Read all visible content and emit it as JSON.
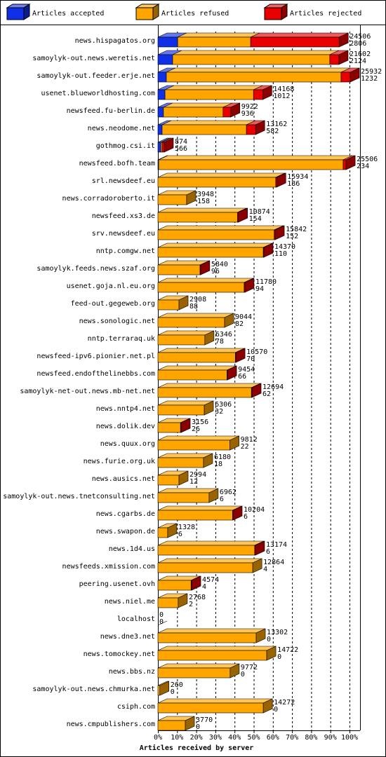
{
  "chart_data": {
    "type": "bar",
    "orientation": "horizontal",
    "stacked": true,
    "x_label": "Articles received by server",
    "xlim": [
      0,
      100
    ],
    "xticks": [
      {
        "value": 0,
        "label": "0%"
      },
      {
        "value": 10,
        "label": "10%"
      },
      {
        "value": 20,
        "label": "20%"
      },
      {
        "value": 30,
        "label": "30%"
      },
      {
        "value": 40,
        "label": "40%"
      },
      {
        "value": 50,
        "label": "50%"
      },
      {
        "value": 60,
        "label": "60%"
      },
      {
        "value": 70,
        "label": "70%"
      },
      {
        "value": 80,
        "label": "80%"
      },
      {
        "value": 90,
        "label": "90%"
      },
      {
        "value": 100,
        "label": "100%"
      }
    ],
    "grid": true,
    "categories": [
      "news.hispagatos.org",
      "samoylyk-out.news.weretis.net",
      "samoylyk-out.feeder.erje.net",
      "usenet.blueworldhosting.com",
      "newsfeed.fu-berlin.de",
      "news.neodome.net",
      "gothmog.csi.it",
      "newsfeed.bofh.team",
      "srl.newsdeef.eu",
      "news.corradoroberto.it",
      "newsfeed.xs3.de",
      "srv.newsdeef.eu",
      "nntp.comgw.net",
      "samoylyk.feeds.news.szaf.org",
      "usenet.goja.nl.eu.org",
      "feed-out.gegeweb.org",
      "news.sonologic.net",
      "nntp.terraraq.uk",
      "newsfeed-ipv6.pionier.net.pl",
      "newsfeed.endofthelinebbs.com",
      "samoylyk-net-out.news.mb-net.net",
      "news.nntp4.net",
      "news.dolik.dev",
      "news.quux.org",
      "news.furie.org.uk",
      "news.ausics.net",
      "samoylyk-out.news.tnetconsulting.net",
      "news.cgarbs.de",
      "news.swapon.de",
      "news.1d4.us",
      "newsfeeds.xmission.com",
      "peering.usenet.ovh",
      "news.niel.me",
      "localhost",
      "news.dne3.net",
      "news.tomockey.net",
      "news.bbs.nz",
      "samoylyk-out.news.chmurka.net",
      "csiph.com",
      "news.cmpublishers.com"
    ],
    "series": [
      {
        "name": "Articles accepted",
        "color": "#1030e8",
        "values": [
          10.3,
          7.7,
          4.4,
          3.7,
          2.9,
          2.2,
          1.5,
          0.4,
          0,
          0,
          0,
          0,
          0,
          0,
          0,
          0,
          0,
          0,
          0,
          0,
          0,
          0,
          0,
          0,
          0,
          0,
          0,
          0,
          0,
          0,
          0,
          0,
          0,
          0,
          0,
          0,
          0,
          0,
          0,
          0
        ]
      },
      {
        "name": "Articles refused",
        "color": "#ffa500",
        "values": [
          38.1,
          82,
          91.2,
          46.2,
          31.1,
          44,
          0.7,
          96.3,
          61.5,
          15,
          41.5,
          60.7,
          55,
          22,
          45,
          11,
          34.8,
          24.5,
          40.4,
          36.1,
          48.8,
          24.2,
          11.8,
          37.6,
          23.8,
          11,
          26.7,
          39,
          5.1,
          50.5,
          49.5,
          17.3,
          10.6,
          0,
          51.3,
          56.8,
          37.7,
          1,
          55,
          14.3
        ]
      },
      {
        "name": "Articles rejected",
        "color": "#e80000",
        "values": [
          46.2,
          4.8,
          4.8,
          4.8,
          4,
          4.8,
          1.1,
          1.5,
          0.5,
          0,
          0.5,
          0.5,
          0.3,
          0.3,
          0.4,
          0,
          0,
          0,
          0.3,
          0.2,
          0.3,
          0,
          0.3,
          0,
          0,
          0,
          0,
          0.2,
          0,
          0.4,
          0,
          0.3,
          0,
          0,
          0,
          0,
          0,
          0,
          0,
          0
        ]
      }
    ],
    "annotations": [
      [
        24506,
        2806
      ],
      [
        21602,
        2124
      ],
      [
        25932,
        1232
      ],
      [
        14168,
        1012
      ],
      [
        9922,
        936
      ],
      [
        13162,
        582
      ],
      [
        874,
        566
      ],
      [
        25506,
        234
      ],
      [
        15934,
        186
      ],
      [
        3948,
        158
      ],
      [
        10874,
        154
      ],
      [
        15842,
        152
      ],
      [
        14370,
        110
      ],
      [
        5840,
        96
      ],
      [
        11780,
        94
      ],
      [
        2908,
        88
      ],
      [
        9044,
        82
      ],
      [
        6346,
        78
      ],
      [
        10570,
        70
      ],
      [
        9454,
        66
      ],
      [
        12694,
        62
      ],
      [
        6306,
        32
      ],
      [
        3156,
        26
      ],
      [
        9812,
        22
      ],
      [
        6180,
        18
      ],
      [
        2994,
        12
      ],
      [
        6962,
        6
      ],
      [
        10204,
        6
      ],
      [
        1328,
        6
      ],
      [
        13174,
        6
      ],
      [
        12864,
        4
      ],
      [
        4574,
        4
      ],
      [
        2768,
        2
      ],
      [
        0,
        0
      ],
      [
        13302,
        0
      ],
      [
        14722,
        0
      ],
      [
        9772,
        0
      ],
      [
        260,
        0
      ],
      [
        14272,
        0
      ],
      [
        3770,
        0
      ]
    ]
  }
}
